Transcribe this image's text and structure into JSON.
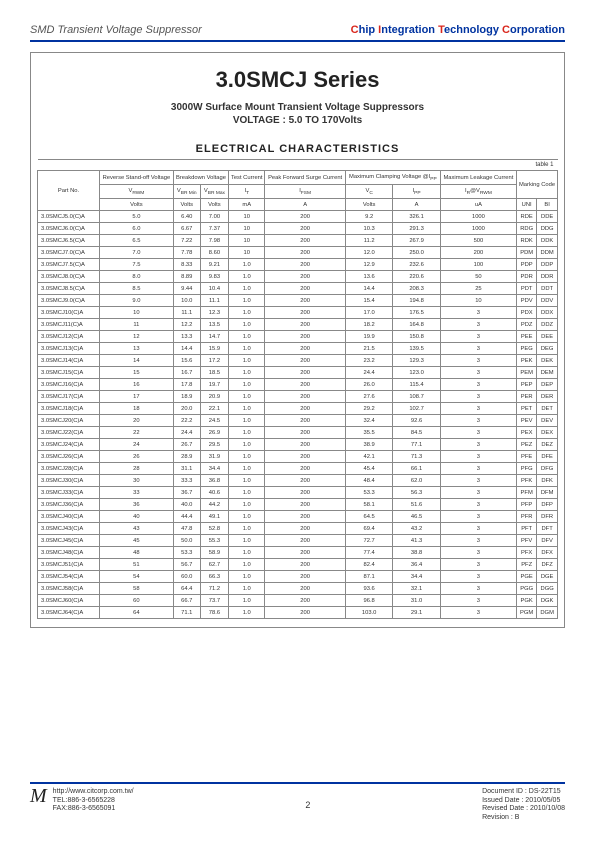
{
  "header": {
    "left": "SMD Transient Voltage Suppressor",
    "company_parts": [
      "C",
      "hip ",
      "I",
      "ntegration ",
      "T",
      "echnology ",
      "C",
      "orporation"
    ]
  },
  "title": {
    "main": "3.0SMCJ Series",
    "sub1": "3000W Surface Mount Transient Voltage Suppressors",
    "sub2": "VOLTAGE : 5.0 TO 170Volts"
  },
  "section": "ELECTRICAL CHARACTERISTICS",
  "table_label": "table 1",
  "columns": {
    "partno": "Part No.",
    "reverse": "Reverse Stand-off Voltage",
    "breakdown": "Breakdown Voltage",
    "test": "Test Current",
    "peak": "Peak Forward Surge Current",
    "clamp": "Maximum Clamping Voltage @I",
    "clamp_sub": "PP",
    "leak": "Maximum Leakage Current",
    "mark": "Marking Code",
    "sym": {
      "vrwm": "V",
      "vrwm_sub": "RWM",
      "vbrmn": "V",
      "vbrmn_sub": "BR Min",
      "vbrmx": "V",
      "vbrmx_sub": "BR Max",
      "it": "I",
      "it_sub": "T",
      "ifsm": "I",
      "ifsm_sub": "FSM",
      "vc": "V",
      "vc_sub": "C",
      "ipp": "I",
      "ipp_sub": "PP",
      "ir": "I",
      "ir_sub": "R",
      "ir_at": "@V",
      "ir_at_sub": "RWM"
    },
    "units": {
      "volts": "Volts",
      "ma": "mA",
      "a": "A",
      "ua": "uA",
      "uni": "UNI",
      "bi": "BI"
    }
  },
  "rows": [
    [
      "3.0SMCJ5.0(C)A",
      "5.0",
      "6.40",
      "7.00",
      "10",
      "200",
      "9.2",
      "326.1",
      "1000",
      "RDE",
      "DDE"
    ],
    [
      "3.0SMCJ6.0(C)A",
      "6.0",
      "6.67",
      "7.37",
      "10",
      "200",
      "10.3",
      "291.3",
      "1000",
      "RDG",
      "DDG"
    ],
    [
      "3.0SMCJ6.5(C)A",
      "6.5",
      "7.22",
      "7.98",
      "10",
      "200",
      "11.2",
      "267.9",
      "500",
      "RDK",
      "DDK"
    ],
    [
      "3.0SMCJ7.0(C)A",
      "7.0",
      "7.78",
      "8.60",
      "10",
      "200",
      "12.0",
      "250.0",
      "200",
      "PDM",
      "DDM"
    ],
    [
      "3.0SMCJ7.5(C)A",
      "7.5",
      "8.33",
      "9.21",
      "1.0",
      "200",
      "12.9",
      "232.6",
      "100",
      "PDP",
      "DDP"
    ],
    [
      "3.0SMCJ8.0(C)A",
      "8.0",
      "8.89",
      "9.83",
      "1.0",
      "200",
      "13.6",
      "220.6",
      "50",
      "PDR",
      "DDR"
    ],
    [
      "3.0SMCJ8.5(C)A",
      "8.5",
      "9.44",
      "10.4",
      "1.0",
      "200",
      "14.4",
      "208.3",
      "25",
      "PDT",
      "DDT"
    ],
    [
      "3.0SMCJ9.0(C)A",
      "9.0",
      "10.0",
      "11.1",
      "1.0",
      "200",
      "15.4",
      "194.8",
      "10",
      "PDV",
      "DDV"
    ],
    [
      "3.0SMCJ10(C)A",
      "10",
      "11.1",
      "12.3",
      "1.0",
      "200",
      "17.0",
      "176.5",
      "3",
      "PDX",
      "DDX"
    ],
    [
      "3.0SMCJ11(C)A",
      "11",
      "12.2",
      "13.5",
      "1.0",
      "200",
      "18.2",
      "164.8",
      "3",
      "PDZ",
      "DDZ"
    ],
    [
      "3.0SMCJ12(C)A",
      "12",
      "13.3",
      "14.7",
      "1.0",
      "200",
      "19.9",
      "150.8",
      "3",
      "PEE",
      "DEE"
    ],
    [
      "3.0SMCJ13(C)A",
      "13",
      "14.4",
      "15.9",
      "1.0",
      "200",
      "21.5",
      "139.5",
      "3",
      "PEG",
      "DEG"
    ],
    [
      "3.0SMCJ14(C)A",
      "14",
      "15.6",
      "17.2",
      "1.0",
      "200",
      "23.2",
      "129.3",
      "3",
      "PEK",
      "DEK"
    ],
    [
      "3.0SMCJ15(C)A",
      "15",
      "16.7",
      "18.5",
      "1.0",
      "200",
      "24.4",
      "123.0",
      "3",
      "PEM",
      "DEM"
    ],
    [
      "3.0SMCJ16(C)A",
      "16",
      "17.8",
      "19.7",
      "1.0",
      "200",
      "26.0",
      "115.4",
      "3",
      "PEP",
      "DEP"
    ],
    [
      "3.0SMCJ17(C)A",
      "17",
      "18.9",
      "20.9",
      "1.0",
      "200",
      "27.6",
      "108.7",
      "3",
      "PER",
      "DER"
    ],
    [
      "3.0SMCJ18(C)A",
      "18",
      "20.0",
      "22.1",
      "1.0",
      "200",
      "29.2",
      "102.7",
      "3",
      "PET",
      "DET"
    ],
    [
      "3.0SMCJ20(C)A",
      "20",
      "22.2",
      "24.5",
      "1.0",
      "200",
      "32.4",
      "92.6",
      "3",
      "PEV",
      "DEV"
    ],
    [
      "3.0SMCJ22(C)A",
      "22",
      "24.4",
      "26.9",
      "1.0",
      "200",
      "35.5",
      "84.5",
      "3",
      "PEX",
      "DEX"
    ],
    [
      "3.0SMCJ24(C)A",
      "24",
      "26.7",
      "29.5",
      "1.0",
      "200",
      "38.9",
      "77.1",
      "3",
      "PEZ",
      "DEZ"
    ],
    [
      "3.0SMCJ26(C)A",
      "26",
      "28.9",
      "31.9",
      "1.0",
      "200",
      "42.1",
      "71.3",
      "3",
      "PFE",
      "DFE"
    ],
    [
      "3.0SMCJ28(C)A",
      "28",
      "31.1",
      "34.4",
      "1.0",
      "200",
      "45.4",
      "66.1",
      "3",
      "PFG",
      "DFG"
    ],
    [
      "3.0SMCJ30(C)A",
      "30",
      "33.3",
      "36.8",
      "1.0",
      "200",
      "48.4",
      "62.0",
      "3",
      "PFK",
      "DFK"
    ],
    [
      "3.0SMCJ33(C)A",
      "33",
      "36.7",
      "40.6",
      "1.0",
      "200",
      "53.3",
      "56.3",
      "3",
      "PFM",
      "DFM"
    ],
    [
      "3.0SMCJ36(C)A",
      "36",
      "40.0",
      "44.2",
      "1.0",
      "200",
      "58.1",
      "51.6",
      "3",
      "PFP",
      "DFP"
    ],
    [
      "3.0SMCJ40(C)A",
      "40",
      "44.4",
      "49.1",
      "1.0",
      "200",
      "64.5",
      "46.5",
      "3",
      "PFR",
      "DFR"
    ],
    [
      "3.0SMCJ43(C)A",
      "43",
      "47.8",
      "52.8",
      "1.0",
      "200",
      "69.4",
      "43.2",
      "3",
      "PFT",
      "DFT"
    ],
    [
      "3.0SMCJ45(C)A",
      "45",
      "50.0",
      "55.3",
      "1.0",
      "200",
      "72.7",
      "41.3",
      "3",
      "PFV",
      "DFV"
    ],
    [
      "3.0SMCJ48(C)A",
      "48",
      "53.3",
      "58.9",
      "1.0",
      "200",
      "77.4",
      "38.8",
      "3",
      "PFX",
      "DFX"
    ],
    [
      "3.0SMCJ51(C)A",
      "51",
      "56.7",
      "62.7",
      "1.0",
      "200",
      "82.4",
      "36.4",
      "3",
      "PFZ",
      "DFZ"
    ],
    [
      "3.0SMCJ54(C)A",
      "54",
      "60.0",
      "66.3",
      "1.0",
      "200",
      "87.1",
      "34.4",
      "3",
      "PGE",
      "DGE"
    ],
    [
      "3.0SMCJ58(C)A",
      "58",
      "64.4",
      "71.2",
      "1.0",
      "200",
      "93.6",
      "32.1",
      "3",
      "PGG",
      "DGG"
    ],
    [
      "3.0SMCJ60(C)A",
      "60",
      "66.7",
      "73.7",
      "1.0",
      "200",
      "96.8",
      "31.0",
      "3",
      "PGK",
      "DGK"
    ],
    [
      "3.0SMCJ64(C)A",
      "64",
      "71.1",
      "78.6",
      "1.0",
      "200",
      "103.0",
      "29.1",
      "3",
      "PGM",
      "DGM"
    ]
  ],
  "footer": {
    "url": "http://www.citcorp.com.tw/",
    "tel": "TEL:886-3-6565228",
    "fax": "FAX:886-3-6565091",
    "page": "2",
    "doc": "Document ID : DS-22T15",
    "issued": "Issued Date : 2010/05/05",
    "revised": "Revised Date : 2010/10/08",
    "rev": "Revision : B"
  }
}
